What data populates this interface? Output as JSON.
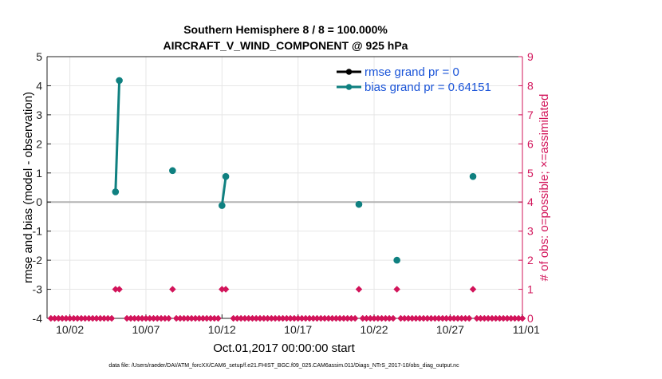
{
  "chart_data": {
    "type": "line",
    "title": "Southern Hemisphere 8 / 8 = 100.000%",
    "subtitle": "AIRCRAFT_V_WIND_COMPONENT @ 925 hPa",
    "xlabel": "Oct.01,2017 00:00:00 start",
    "ylabel": "rmse and bias (model - observation)",
    "y2label": "# of obs: o=possible; ×=assimilated",
    "footer": "data file: /Users/raeder/DAI/ATM_forcXX/CAM6_setup/f.e21.FHIST_BGC.f09_025.CAM6assim.011/Diags_NTrS_2017-10/obs_diag_output.nc",
    "xlim": [
      0.5,
      31.75
    ],
    "ylim": [
      -4,
      5
    ],
    "y2lim": [
      0,
      9
    ],
    "grid": true,
    "legend_position": "top-right",
    "x_ticks": [
      {
        "x": 2,
        "label": "10/02"
      },
      {
        "x": 7,
        "label": "10/07"
      },
      {
        "x": 12,
        "label": "10/12"
      },
      {
        "x": 17,
        "label": "10/17"
      },
      {
        "x": 22,
        "label": "10/22"
      },
      {
        "x": 27,
        "label": "10/27"
      },
      {
        "x": 32,
        "label": "11/01"
      }
    ],
    "y_ticks": [
      5,
      4,
      3,
      2,
      1,
      0,
      -1,
      -2,
      -3,
      -4
    ],
    "y2_ticks": [
      9,
      8,
      7,
      6,
      5,
      4,
      3,
      2,
      1,
      0
    ],
    "zero_line": 0,
    "series": [
      {
        "name": "rmse grand pr = 0",
        "color": "#000000",
        "points": []
      },
      {
        "name": "bias grand pr = 0.64151",
        "color": "#0f8080",
        "segments": [
          [
            [
              5.0,
              0.35
            ],
            [
              5.25,
              4.18
            ]
          ],
          [
            [
              8.75,
              1.08
            ]
          ],
          [
            [
              12.0,
              -0.12
            ],
            [
              12.25,
              0.88
            ]
          ],
          [
            [
              21.0,
              -0.08
            ]
          ],
          [
            [
              23.5,
              -2.0
            ]
          ],
          [
            [
              28.5,
              0.88
            ]
          ]
        ]
      }
    ],
    "obs_counts": {
      "color": "#d2145a",
      "x_start": 0.75,
      "x_step": 0.25,
      "nonzero": [
        {
          "x": 5.0,
          "count": 1
        },
        {
          "x": 5.25,
          "count": 1
        },
        {
          "x": 8.75,
          "count": 1
        },
        {
          "x": 12.0,
          "count": 1
        },
        {
          "x": 12.25,
          "count": 1
        },
        {
          "x": 21.0,
          "count": 1
        },
        {
          "x": 23.5,
          "count": 1
        },
        {
          "x": 28.5,
          "count": 1
        }
      ],
      "gaps": [
        5.5,
        12.5
      ]
    }
  }
}
